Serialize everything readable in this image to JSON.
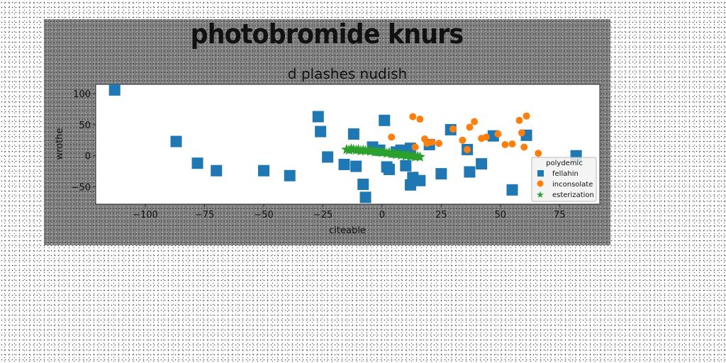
{
  "figure": {
    "title": "photobromide knurs"
  },
  "chart_data": {
    "type": "scatter",
    "title": "d plashes nudish",
    "xlabel": "citeable",
    "ylabel": "wrothe",
    "xlim": [
      -121,
      92
    ],
    "ylim": [
      -78,
      115
    ],
    "xticks": [
      -100,
      -75,
      -50,
      -25,
      0,
      25,
      50,
      75
    ],
    "yticks": [
      -50,
      0,
      50,
      100
    ],
    "xtick_labels": [
      "−100",
      "−75",
      "−50",
      "−25",
      "0",
      "25",
      "50",
      "75"
    ],
    "ytick_labels": [
      "−50",
      "0",
      "50",
      "100"
    ],
    "grid": false,
    "legend": {
      "title": "polydemic",
      "position": "lower-right"
    },
    "series": [
      {
        "name": "fellahin",
        "marker": "square",
        "color": "#1f77b4",
        "x": [
          -113,
          -87,
          -78,
          -70,
          -50,
          -39,
          -27,
          -26,
          -23,
          -16,
          -11,
          -8,
          -12,
          -7,
          -4,
          -1,
          1,
          2,
          3,
          6,
          8,
          10,
          12,
          13,
          12,
          16,
          20,
          25,
          29,
          36,
          37,
          42,
          47,
          55,
          61,
          82
        ],
        "y": [
          106,
          23,
          -12,
          -24,
          -24,
          -32,
          63,
          39,
          -2,
          -14,
          -17,
          -46,
          35,
          -67,
          14,
          9,
          57,
          -18,
          -22,
          6,
          9,
          -16,
          12,
          -35,
          -47,
          -40,
          18,
          -29,
          42,
          10,
          -26,
          -13,
          32,
          -55,
          33,
          0
        ]
      },
      {
        "name": "inconsolate",
        "marker": "circle",
        "color": "#ff7f0e",
        "x": [
          4,
          13,
          14,
          16,
          18,
          19,
          21,
          24,
          30,
          34,
          36,
          37,
          39,
          42,
          44,
          49,
          52,
          55,
          58,
          59,
          60,
          61,
          66
        ],
        "y": [
          30,
          63,
          14,
          59,
          27,
          20,
          22,
          20,
          43,
          25,
          10,
          46,
          55,
          28,
          30,
          35,
          18,
          19,
          57,
          37,
          14,
          64,
          4
        ]
      },
      {
        "name": "esterization",
        "marker": "star",
        "color": "#2ca02c",
        "x": [
          -15,
          -14,
          -13,
          -12,
          -11,
          -10,
          -9,
          -8,
          -7,
          -6,
          -5,
          -4,
          -3,
          -2,
          -1,
          0,
          1,
          2,
          3,
          4,
          5,
          6,
          7,
          8,
          9,
          10,
          11,
          12,
          13,
          14,
          15,
          16
        ],
        "y": [
          10,
          9,
          11,
          10,
          9,
          10,
          8,
          9,
          8,
          9,
          7,
          8,
          6,
          7,
          6,
          5,
          6,
          4,
          5,
          3,
          4,
          2,
          3,
          1,
          2,
          0,
          1,
          -1,
          0,
          -2,
          -1,
          -2
        ]
      }
    ]
  }
}
